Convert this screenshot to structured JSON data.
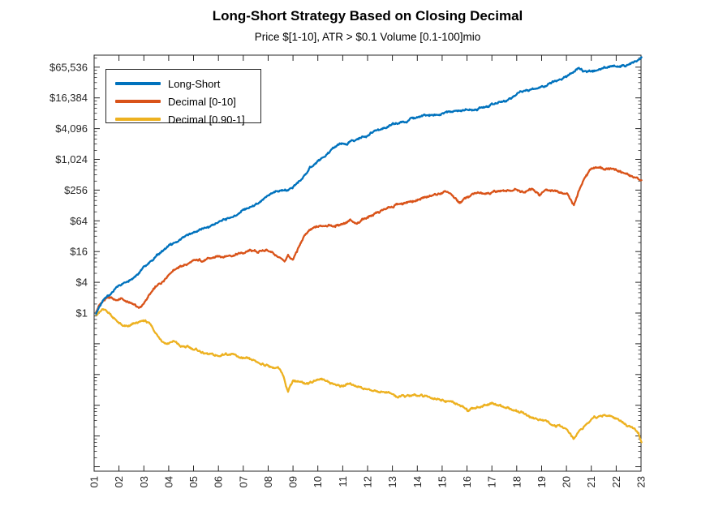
{
  "title": "Long-Short Strategy Based on Closing Decimal",
  "subtitle": "Price $[1-10], ATR > $0.1 Volume [0.1-100]mio",
  "colors": {
    "axis": "#262626",
    "background": "#ffffff"
  },
  "chart_data": {
    "type": "line",
    "title": "Long-Short Strategy Based on Closing Decimal",
    "subtitle": "Price $[1-10], ATR > $0.1 Volume [0.1-100]mio",
    "legend_position": "top-left-inside",
    "grid": false,
    "y_axis": {
      "scale": "log",
      "unit": "dollars",
      "ticks": [
        {
          "label": "$1",
          "value": 1
        },
        {
          "label": "$4",
          "value": 4
        },
        {
          "label": "$16",
          "value": 16
        },
        {
          "label": "$64",
          "value": 64
        },
        {
          "label": "$256",
          "value": 256
        },
        {
          "label": "$1,024",
          "value": 1024
        },
        {
          "label": "$4,096",
          "value": 4096
        },
        {
          "label": "$16,384",
          "value": 16384
        },
        {
          "label": "$65,536",
          "value": 65536
        }
      ],
      "range_top": 110000,
      "range_bottom": 0.00075
    },
    "x_axis": {
      "unit": "year",
      "tick_labels": [
        "01",
        "02",
        "03",
        "04",
        "05",
        "06",
        "07",
        "08",
        "09",
        "10",
        "11",
        "12",
        "13",
        "14",
        "15",
        "16",
        "17",
        "18",
        "19",
        "20",
        "21",
        "22",
        "23"
      ],
      "tick_values": [
        1,
        2,
        3,
        4,
        5,
        6,
        7,
        8,
        9,
        10,
        11,
        12,
        13,
        14,
        15,
        16,
        17,
        18,
        19,
        20,
        21,
        22,
        23
      ],
      "label_rotation_deg": 90
    },
    "series": [
      {
        "name": "Long-Short",
        "color": "#0072BD",
        "points": [
          [
            1.08,
            1.0
          ],
          [
            1.2,
            1.35
          ],
          [
            1.4,
            1.8
          ],
          [
            1.7,
            2.5
          ],
          [
            2.0,
            3.4
          ],
          [
            2.3,
            4.3
          ],
          [
            2.6,
            5.4
          ],
          [
            3.0,
            8
          ],
          [
            3.3,
            10.5
          ],
          [
            3.6,
            14.5
          ],
          [
            4.0,
            20
          ],
          [
            4.3,
            24
          ],
          [
            4.6,
            30
          ],
          [
            5.0,
            38
          ],
          [
            5.3,
            43
          ],
          [
            5.6,
            48
          ],
          [
            6.0,
            60
          ],
          [
            6.3,
            68
          ],
          [
            6.6,
            78
          ],
          [
            7.0,
            105
          ],
          [
            7.3,
            118
          ],
          [
            7.6,
            132
          ],
          [
            7.9,
            170
          ],
          [
            8.1,
            210
          ],
          [
            8.35,
            245
          ],
          [
            8.6,
            240
          ],
          [
            8.85,
            262
          ],
          [
            9.1,
            330
          ],
          [
            9.4,
            430
          ],
          [
            9.7,
            700
          ],
          [
            10.0,
            900
          ],
          [
            10.3,
            1170
          ],
          [
            10.6,
            1600
          ],
          [
            10.9,
            2000
          ],
          [
            11.1,
            1900
          ],
          [
            11.4,
            2300
          ],
          [
            11.7,
            2700
          ],
          [
            12.0,
            3100
          ],
          [
            12.4,
            3800
          ],
          [
            12.8,
            4500
          ],
          [
            13.2,
            5000
          ],
          [
            13.6,
            6000
          ],
          [
            14.0,
            6800
          ],
          [
            14.4,
            7300
          ],
          [
            14.8,
            7600
          ],
          [
            15.2,
            8300
          ],
          [
            15.6,
            9000
          ],
          [
            16.0,
            9400
          ],
          [
            16.4,
            9800
          ],
          [
            16.8,
            11700
          ],
          [
            17.2,
            13000
          ],
          [
            17.5,
            14000
          ],
          [
            17.8,
            17000
          ],
          [
            18.1,
            21500
          ],
          [
            18.5,
            24000
          ],
          [
            18.8,
            27000
          ],
          [
            19.1,
            29000
          ],
          [
            19.4,
            32000
          ],
          [
            19.8,
            37000
          ],
          [
            20.2,
            48000
          ],
          [
            20.5,
            65000
          ],
          [
            20.75,
            54000
          ],
          [
            21.1,
            57000
          ],
          [
            21.4,
            65000
          ],
          [
            21.8,
            67000
          ],
          [
            22.2,
            68000
          ],
          [
            22.5,
            72000
          ],
          [
            22.8,
            82000
          ],
          [
            23.03,
            100000
          ]
        ]
      },
      {
        "name": "Decimal [0-10]",
        "color": "#D95319",
        "points": [
          [
            1.08,
            1.05
          ],
          [
            1.2,
            1.4
          ],
          [
            1.35,
            1.7
          ],
          [
            1.5,
            1.9
          ],
          [
            1.7,
            2.0
          ],
          [
            1.9,
            1.75
          ],
          [
            2.1,
            1.9
          ],
          [
            2.35,
            1.6
          ],
          [
            2.6,
            1.5
          ],
          [
            2.8,
            1.25
          ],
          [
            3.0,
            1.5
          ],
          [
            3.2,
            2.2
          ],
          [
            3.5,
            3.2
          ],
          [
            3.7,
            3.8
          ],
          [
            4.0,
            6.0
          ],
          [
            4.3,
            7.8
          ],
          [
            4.6,
            8.5
          ],
          [
            4.9,
            10
          ],
          [
            5.2,
            10.5
          ],
          [
            5.5,
            11
          ],
          [
            5.8,
            12
          ],
          [
            6.1,
            13
          ],
          [
            6.4,
            13.5
          ],
          [
            6.7,
            14.5
          ],
          [
            7.0,
            15
          ],
          [
            7.3,
            16.5
          ],
          [
            7.6,
            15.5
          ],
          [
            7.9,
            17.5
          ],
          [
            8.2,
            15
          ],
          [
            8.45,
            12
          ],
          [
            8.65,
            9.5
          ],
          [
            8.8,
            13
          ],
          [
            9.0,
            11
          ],
          [
            9.25,
            20
          ],
          [
            9.5,
            35
          ],
          [
            9.8,
            44
          ],
          [
            10.1,
            50
          ],
          [
            10.4,
            55
          ],
          [
            10.7,
            50
          ],
          [
            11.0,
            58
          ],
          [
            11.3,
            65
          ],
          [
            11.55,
            52
          ],
          [
            11.8,
            70
          ],
          [
            12.1,
            80
          ],
          [
            12.5,
            95
          ],
          [
            12.9,
            115
          ],
          [
            13.2,
            135
          ],
          [
            13.6,
            150
          ],
          [
            14.0,
            165
          ],
          [
            14.4,
            185
          ],
          [
            14.8,
            208
          ],
          [
            15.2,
            230
          ],
          [
            15.7,
            145
          ],
          [
            16.0,
            185
          ],
          [
            16.3,
            215
          ],
          [
            16.6,
            230
          ],
          [
            17.0,
            240
          ],
          [
            17.3,
            250
          ],
          [
            17.6,
            245
          ],
          [
            18.0,
            260
          ],
          [
            18.35,
            230
          ],
          [
            18.6,
            265
          ],
          [
            18.9,
            200
          ],
          [
            19.2,
            268
          ],
          [
            19.5,
            255
          ],
          [
            19.8,
            240
          ],
          [
            20.05,
            225
          ],
          [
            20.3,
            128
          ],
          [
            20.55,
            280
          ],
          [
            20.8,
            480
          ],
          [
            21.0,
            650
          ],
          [
            21.3,
            750
          ],
          [
            21.5,
            700
          ],
          [
            21.8,
            720
          ],
          [
            22.0,
            640
          ],
          [
            22.3,
            560
          ],
          [
            22.6,
            470
          ],
          [
            22.8,
            450
          ],
          [
            23.03,
            400
          ]
        ]
      },
      {
        "name": "Decimal [0.90-1]",
        "color": "#EDB120",
        "points": [
          [
            1.08,
            0.95
          ],
          [
            1.2,
            1.05
          ],
          [
            1.35,
            1.15
          ],
          [
            1.6,
            1.0
          ],
          [
            1.9,
            0.72
          ],
          [
            2.1,
            0.58
          ],
          [
            2.35,
            0.52
          ],
          [
            2.7,
            0.62
          ],
          [
            3.05,
            0.7
          ],
          [
            3.3,
            0.55
          ],
          [
            3.6,
            0.33
          ],
          [
            3.9,
            0.26
          ],
          [
            4.2,
            0.28
          ],
          [
            4.5,
            0.22
          ],
          [
            4.8,
            0.21
          ],
          [
            5.1,
            0.19
          ],
          [
            5.4,
            0.165
          ],
          [
            5.7,
            0.15
          ],
          [
            6.0,
            0.14
          ],
          [
            6.3,
            0.165
          ],
          [
            6.6,
            0.15
          ],
          [
            6.9,
            0.13
          ],
          [
            7.2,
            0.12
          ],
          [
            7.5,
            0.11
          ],
          [
            7.8,
            0.1
          ],
          [
            8.1,
            0.09
          ],
          [
            8.4,
            0.082
          ],
          [
            8.6,
            0.06
          ],
          [
            8.8,
            0.03
          ],
          [
            9.0,
            0.05
          ],
          [
            9.3,
            0.044
          ],
          [
            9.6,
            0.042
          ],
          [
            9.9,
            0.048
          ],
          [
            10.2,
            0.051
          ],
          [
            10.6,
            0.042
          ],
          [
            10.9,
            0.036
          ],
          [
            11.2,
            0.04
          ],
          [
            11.6,
            0.038
          ],
          [
            12.0,
            0.032
          ],
          [
            12.4,
            0.03
          ],
          [
            12.8,
            0.028
          ],
          [
            13.2,
            0.023
          ],
          [
            13.7,
            0.0235
          ],
          [
            14.1,
            0.024
          ],
          [
            14.5,
            0.022
          ],
          [
            14.9,
            0.021
          ],
          [
            15.3,
            0.019
          ],
          [
            15.7,
            0.016
          ],
          [
            16.05,
            0.012
          ],
          [
            16.4,
            0.014
          ],
          [
            16.7,
            0.016
          ],
          [
            17.0,
            0.017
          ],
          [
            17.4,
            0.015
          ],
          [
            17.8,
            0.013
          ],
          [
            18.2,
            0.011
          ],
          [
            18.6,
            0.009
          ],
          [
            19.0,
            0.008
          ],
          [
            19.4,
            0.0066
          ],
          [
            19.8,
            0.0058
          ],
          [
            20.05,
            0.005
          ],
          [
            20.3,
            0.0032
          ],
          [
            20.55,
            0.0052
          ],
          [
            20.8,
            0.0065
          ],
          [
            21.1,
            0.009
          ],
          [
            21.45,
            0.0098
          ],
          [
            21.8,
            0.0092
          ],
          [
            22.1,
            0.0078
          ],
          [
            22.4,
            0.0068
          ],
          [
            22.7,
            0.0055
          ],
          [
            22.9,
            0.0042
          ],
          [
            23.03,
            0.0027
          ]
        ]
      }
    ]
  }
}
